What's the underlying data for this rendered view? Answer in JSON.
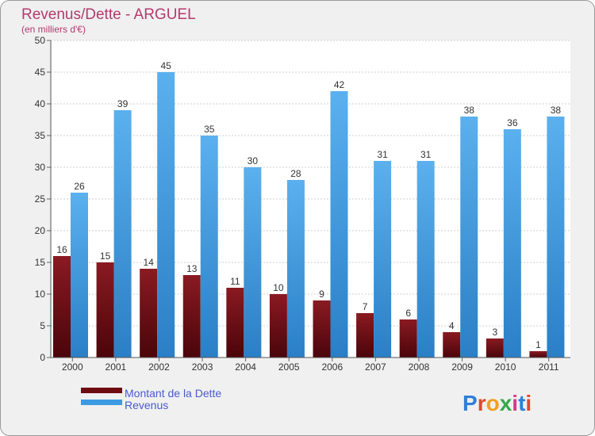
{
  "chart_data": {
    "type": "bar",
    "title": "Revenus/Dette - ARGUEL",
    "subtitle": "(en milliers d'€)",
    "categories": [
      "2000",
      "2001",
      "2002",
      "2003",
      "2004",
      "2005",
      "2006",
      "2007",
      "2008",
      "2009",
      "2010",
      "2011"
    ],
    "series": [
      {
        "name": "Montant de la Dette",
        "values": [
          16,
          15,
          14,
          13,
          11,
          10,
          9,
          7,
          6,
          4,
          3,
          1
        ]
      },
      {
        "name": "Revenus",
        "values": [
          26,
          39,
          45,
          35,
          30,
          28,
          42,
          31,
          31,
          38,
          36,
          38
        ]
      }
    ],
    "yticks": [
      0,
      5,
      10,
      15,
      20,
      25,
      30,
      35,
      40,
      45,
      50
    ],
    "ylim": [
      0,
      50
    ],
    "grid": true,
    "legend": "bottom-left",
    "colors": {
      "title": "#b33a6e",
      "legend_text": "#4a5ad0",
      "dette": "#7a0d14",
      "revenus": "#3c9be0"
    }
  },
  "brand": {
    "text": "Proxiti"
  }
}
